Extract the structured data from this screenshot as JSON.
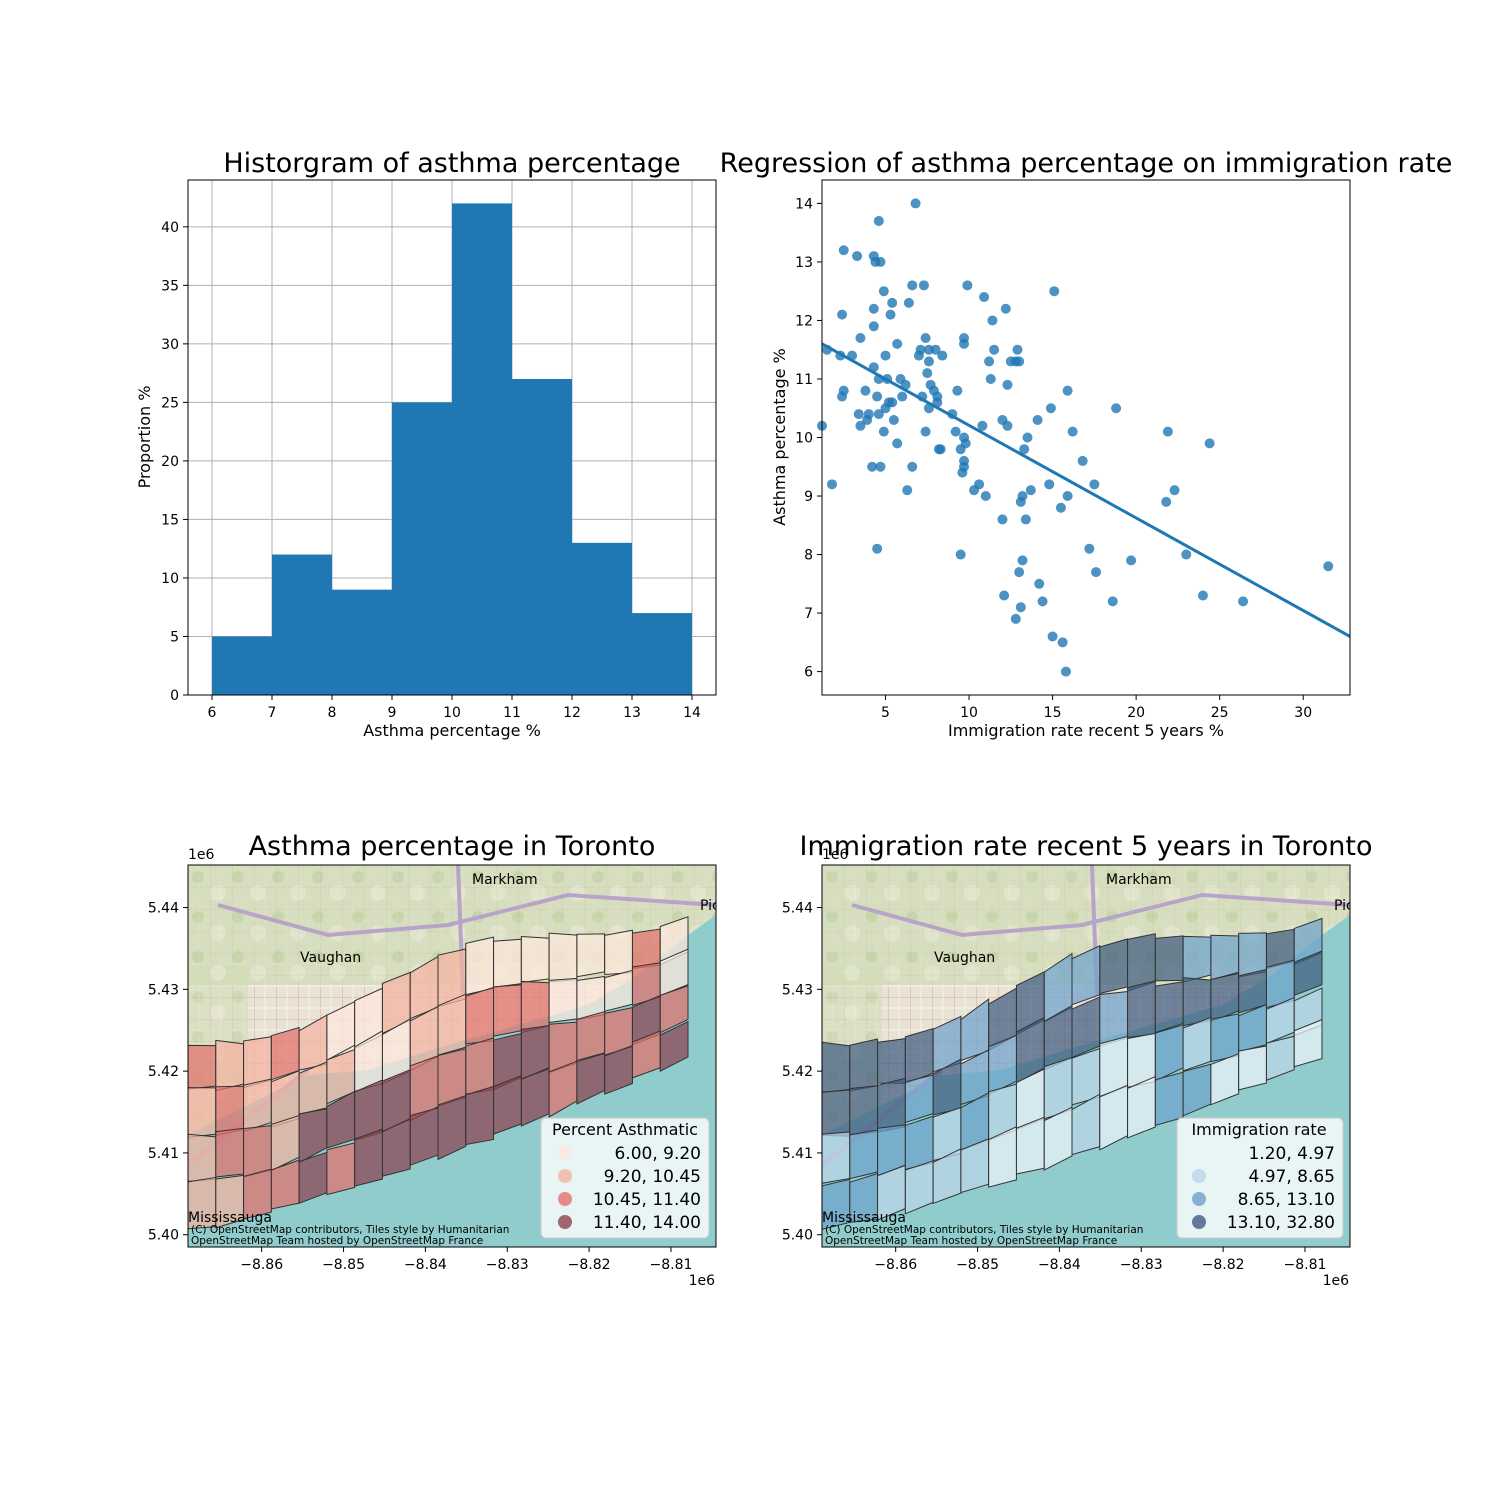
{
  "chart_data": [
    {
      "type": "bar",
      "title": "Historgram of asthma percentage",
      "xlabel": "Asthma percentage %",
      "ylabel": "Proportion %",
      "bin_edges": [
        6,
        7,
        8,
        9,
        10,
        11,
        12,
        13,
        14
      ],
      "values": [
        5,
        12,
        9,
        25,
        42,
        27,
        13,
        7
      ],
      "xlim": [
        5.6,
        14.4
      ],
      "ylim": [
        0,
        44
      ],
      "x_ticks": [
        "6",
        "7",
        "8",
        "9",
        "10",
        "11",
        "12",
        "13",
        "14"
      ],
      "y_ticks": [
        "0",
        "5",
        "10",
        "15",
        "20",
        "25",
        "30",
        "35",
        "40"
      ],
      "grid": true,
      "color": "#1f77b4"
    },
    {
      "type": "scatter",
      "title": "Regression of asthma percentage on immigration rate",
      "xlabel": "Immigration rate recent 5 years %",
      "ylabel": "Asthma percentage %",
      "xlim": [
        1.2,
        32.8
      ],
      "ylim": [
        5.6,
        14.4
      ],
      "x_ticks": [
        "5",
        "10",
        "15",
        "20",
        "25",
        "30"
      ],
      "y_ticks": [
        "6",
        "7",
        "8",
        "9",
        "10",
        "11",
        "12",
        "13",
        "14"
      ],
      "color": "#1f77b4",
      "regression_line": {
        "x": [
          1.2,
          32.8
        ],
        "y": [
          11.6,
          6.6
        ]
      },
      "points": [
        [
          1.2,
          10.2
        ],
        [
          1.5,
          11.5
        ],
        [
          1.8,
          9.2
        ],
        [
          2.3,
          11.4
        ],
        [
          2.4,
          10.7
        ],
        [
          2.5,
          13.2
        ],
        [
          2.4,
          12.1
        ],
        [
          2.5,
          10.8
        ],
        [
          3.0,
          11.4
        ],
        [
          3.3,
          13.1
        ],
        [
          3.4,
          10.4
        ],
        [
          3.5,
          11.7
        ],
        [
          3.5,
          10.2
        ],
        [
          3.8,
          10.8
        ],
        [
          3.9,
          10.3
        ],
        [
          4.0,
          10.4
        ],
        [
          4.2,
          9.5
        ],
        [
          4.3,
          12.2
        ],
        [
          4.3,
          11.9
        ],
        [
          4.3,
          11.2
        ],
        [
          4.3,
          13.1
        ],
        [
          4.4,
          13.0
        ],
        [
          4.5,
          8.1
        ],
        [
          4.5,
          10.7
        ],
        [
          4.6,
          13.7
        ],
        [
          4.6,
          11.0
        ],
        [
          4.6,
          10.4
        ],
        [
          4.7,
          9.5
        ],
        [
          4.7,
          13.0
        ],
        [
          4.9,
          10.1
        ],
        [
          4.9,
          12.5
        ],
        [
          5.0,
          11.4
        ],
        [
          5.0,
          10.5
        ],
        [
          5.1,
          11.0
        ],
        [
          5.2,
          10.6
        ],
        [
          5.3,
          12.1
        ],
        [
          5.4,
          10.6
        ],
        [
          5.4,
          12.3
        ],
        [
          5.5,
          10.3
        ],
        [
          5.7,
          9.9
        ],
        [
          5.7,
          11.6
        ],
        [
          5.9,
          11.0
        ],
        [
          6.0,
          10.7
        ],
        [
          6.2,
          10.9
        ],
        [
          6.3,
          9.1
        ],
        [
          6.4,
          12.3
        ],
        [
          6.6,
          9.5
        ],
        [
          6.6,
          12.6
        ],
        [
          6.8,
          14.0
        ],
        [
          7.0,
          11.4
        ],
        [
          7.1,
          11.5
        ],
        [
          7.2,
          10.7
        ],
        [
          7.3,
          12.6
        ],
        [
          7.4,
          11.7
        ],
        [
          7.4,
          10.1
        ],
        [
          7.5,
          11.1
        ],
        [
          7.6,
          11.5
        ],
        [
          7.6,
          11.3
        ],
        [
          7.7,
          10.9
        ],
        [
          7.6,
          10.5
        ],
        [
          7.9,
          10.8
        ],
        [
          8.0,
          11.5
        ],
        [
          8.1,
          10.7
        ],
        [
          8.1,
          10.6
        ],
        [
          8.2,
          9.8
        ],
        [
          8.3,
          9.8
        ],
        [
          8.4,
          11.4
        ],
        [
          9.0,
          10.4
        ],
        [
          9.2,
          10.1
        ],
        [
          9.3,
          10.8
        ],
        [
          9.5,
          8.0
        ],
        [
          9.5,
          9.8
        ],
        [
          9.6,
          9.4
        ],
        [
          9.7,
          9.5
        ],
        [
          9.7,
          9.6
        ],
        [
          9.7,
          10.0
        ],
        [
          9.7,
          11.7
        ],
        [
          9.7,
          11.6
        ],
        [
          9.8,
          9.9
        ],
        [
          9.9,
          12.6
        ],
        [
          10.3,
          9.1
        ],
        [
          10.6,
          9.2
        ],
        [
          10.8,
          10.2
        ],
        [
          10.9,
          12.4
        ],
        [
          11.0,
          9.0
        ],
        [
          11.2,
          11.3
        ],
        [
          11.3,
          11.0
        ],
        [
          11.4,
          12.0
        ],
        [
          11.5,
          11.5
        ],
        [
          12.0,
          8.6
        ],
        [
          12.0,
          10.3
        ],
        [
          12.1,
          7.3
        ],
        [
          12.2,
          12.2
        ],
        [
          12.3,
          10.2
        ],
        [
          12.3,
          10.9
        ],
        [
          12.5,
          11.3
        ],
        [
          12.8,
          11.3
        ],
        [
          12.8,
          6.9
        ],
        [
          12.9,
          11.5
        ],
        [
          13.0,
          7.7
        ],
        [
          13.0,
          11.3
        ],
        [
          13.1,
          7.1
        ],
        [
          13.1,
          8.9
        ],
        [
          13.2,
          9.0
        ],
        [
          13.2,
          7.9
        ],
        [
          13.3,
          9.8
        ],
        [
          13.4,
          8.6
        ],
        [
          13.5,
          10.0
        ],
        [
          13.7,
          9.1
        ],
        [
          14.1,
          10.3
        ],
        [
          14.2,
          7.5
        ],
        [
          14.4,
          7.2
        ],
        [
          14.8,
          9.2
        ],
        [
          14.9,
          10.5
        ],
        [
          15.0,
          6.6
        ],
        [
          15.1,
          12.5
        ],
        [
          15.5,
          8.8
        ],
        [
          15.6,
          6.5
        ],
        [
          15.8,
          6.0
        ],
        [
          15.9,
          10.8
        ],
        [
          15.9,
          9.0
        ],
        [
          16.2,
          10.1
        ],
        [
          16.8,
          9.6
        ],
        [
          17.2,
          8.1
        ],
        [
          17.5,
          9.2
        ],
        [
          17.6,
          7.7
        ],
        [
          18.6,
          7.2
        ],
        [
          18.8,
          10.5
        ],
        [
          19.7,
          7.9
        ],
        [
          21.8,
          8.9
        ],
        [
          21.9,
          10.1
        ],
        [
          22.3,
          9.1
        ],
        [
          23.0,
          8.0
        ],
        [
          24.0,
          7.3
        ],
        [
          24.4,
          9.9
        ],
        [
          26.4,
          7.2
        ],
        [
          31.5,
          7.8
        ],
        [
          32.9,
          6.7
        ]
      ]
    },
    {
      "type": "map",
      "title": "Asthma percentage in Toronto",
      "offset_label": "1e6",
      "x_offset_label": "1e6",
      "xlim": [
        -8.869,
        -8.8045
      ],
      "ylim": [
        5.3985,
        5.4452
      ],
      "x_ticks": [
        "−8.86",
        "−8.85",
        "−8.84",
        "−8.83",
        "−8.82",
        "−8.81"
      ],
      "y_ticks": [
        "5.40",
        "5.41",
        "5.42",
        "5.43",
        "5.44"
      ],
      "legend_title": "Percent Asthmatic",
      "legend_position": "lower right",
      "legend": [
        {
          "label": "6.00,  9.20",
          "color": "#fde7dd"
        },
        {
          "label": "9.20, 10.45",
          "color": "#f4b39f"
        },
        {
          "label": "10.45, 11.40",
          "color": "#e2706a"
        },
        {
          "label": "11.40, 14.00",
          "color": "#8c4150"
        }
      ],
      "attribution": [
        "(C) OpenStreetMap contributors, Tiles style by Humanitarian",
        "OpenStreetMap Team hosted by OpenStreetMap France"
      ],
      "place_labels": [
        "Markham",
        "Vaughan",
        "Mississauga",
        "Pickering"
      ]
    },
    {
      "type": "map",
      "title": "Immigration rate recent 5 years in Toronto",
      "offset_label": "1e6",
      "x_offset_label": "1e6",
      "xlim": [
        -8.869,
        -8.8045
      ],
      "ylim": [
        5.3985,
        5.4452
      ],
      "x_ticks": [
        "−8.86",
        "−8.85",
        "−8.84",
        "−8.83",
        "−8.82",
        "−8.81"
      ],
      "y_ticks": [
        "5.40",
        "5.41",
        "5.42",
        "5.43",
        "5.44"
      ],
      "legend_title": "Immigration rate",
      "legend_position": "lower right",
      "legend": [
        {
          "label": "1.20,  4.97",
          "color": "#eef4fa"
        },
        {
          "label": "4.97,  8.65",
          "color": "#bcd6ea"
        },
        {
          "label": "8.65, 13.10",
          "color": "#6da2cc"
        },
        {
          "label": "13.10, 32.80",
          "color": "#3f5b80"
        }
      ],
      "attribution": [
        "(C) OpenStreetMap contributors, Tiles style by Humanitarian",
        "OpenStreetMap Team hosted by OpenStreetMap France"
      ],
      "place_labels": [
        "Markham",
        "Vaughan",
        "Mississauga",
        "Pickering"
      ]
    }
  ]
}
